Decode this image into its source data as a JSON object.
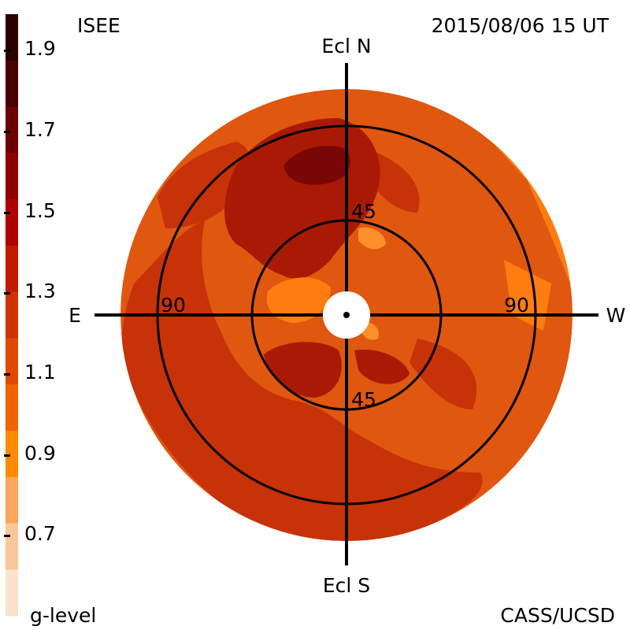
{
  "header": {
    "left_title": "ISEE",
    "right_title": "2015/08/06 15 UT"
  },
  "footer": {
    "left_label": "g-level",
    "right_label": "CASS/UCSD"
  },
  "colorbar": {
    "ticks": [
      "1.9",
      "1.7",
      "1.5",
      "1.3",
      "1.1",
      "0.9",
      "0.7"
    ],
    "colors": [
      "#2a0000",
      "#4a0000",
      "#6c0000",
      "#8e0000",
      "#b00000",
      "#c21a00",
      "#cf3300",
      "#e04a00",
      "#f06400",
      "#ff8a00",
      "#fba65a",
      "#f9c79a",
      "#fbe2cc"
    ]
  },
  "map": {
    "north_label": "Ecl N",
    "south_label": "Ecl S",
    "east_label": "E",
    "west_label": "W",
    "ring_inner_top": "45",
    "ring_inner_bottom": "45",
    "ring_outer_left": "90",
    "ring_outer_right": "90",
    "colors": {
      "background": "#e0570f",
      "dark": "#c73208",
      "darker": "#a81a05",
      "darkest": "#7a0707",
      "light": "#ff7d10",
      "lighter": "#ff8f2a"
    }
  }
}
